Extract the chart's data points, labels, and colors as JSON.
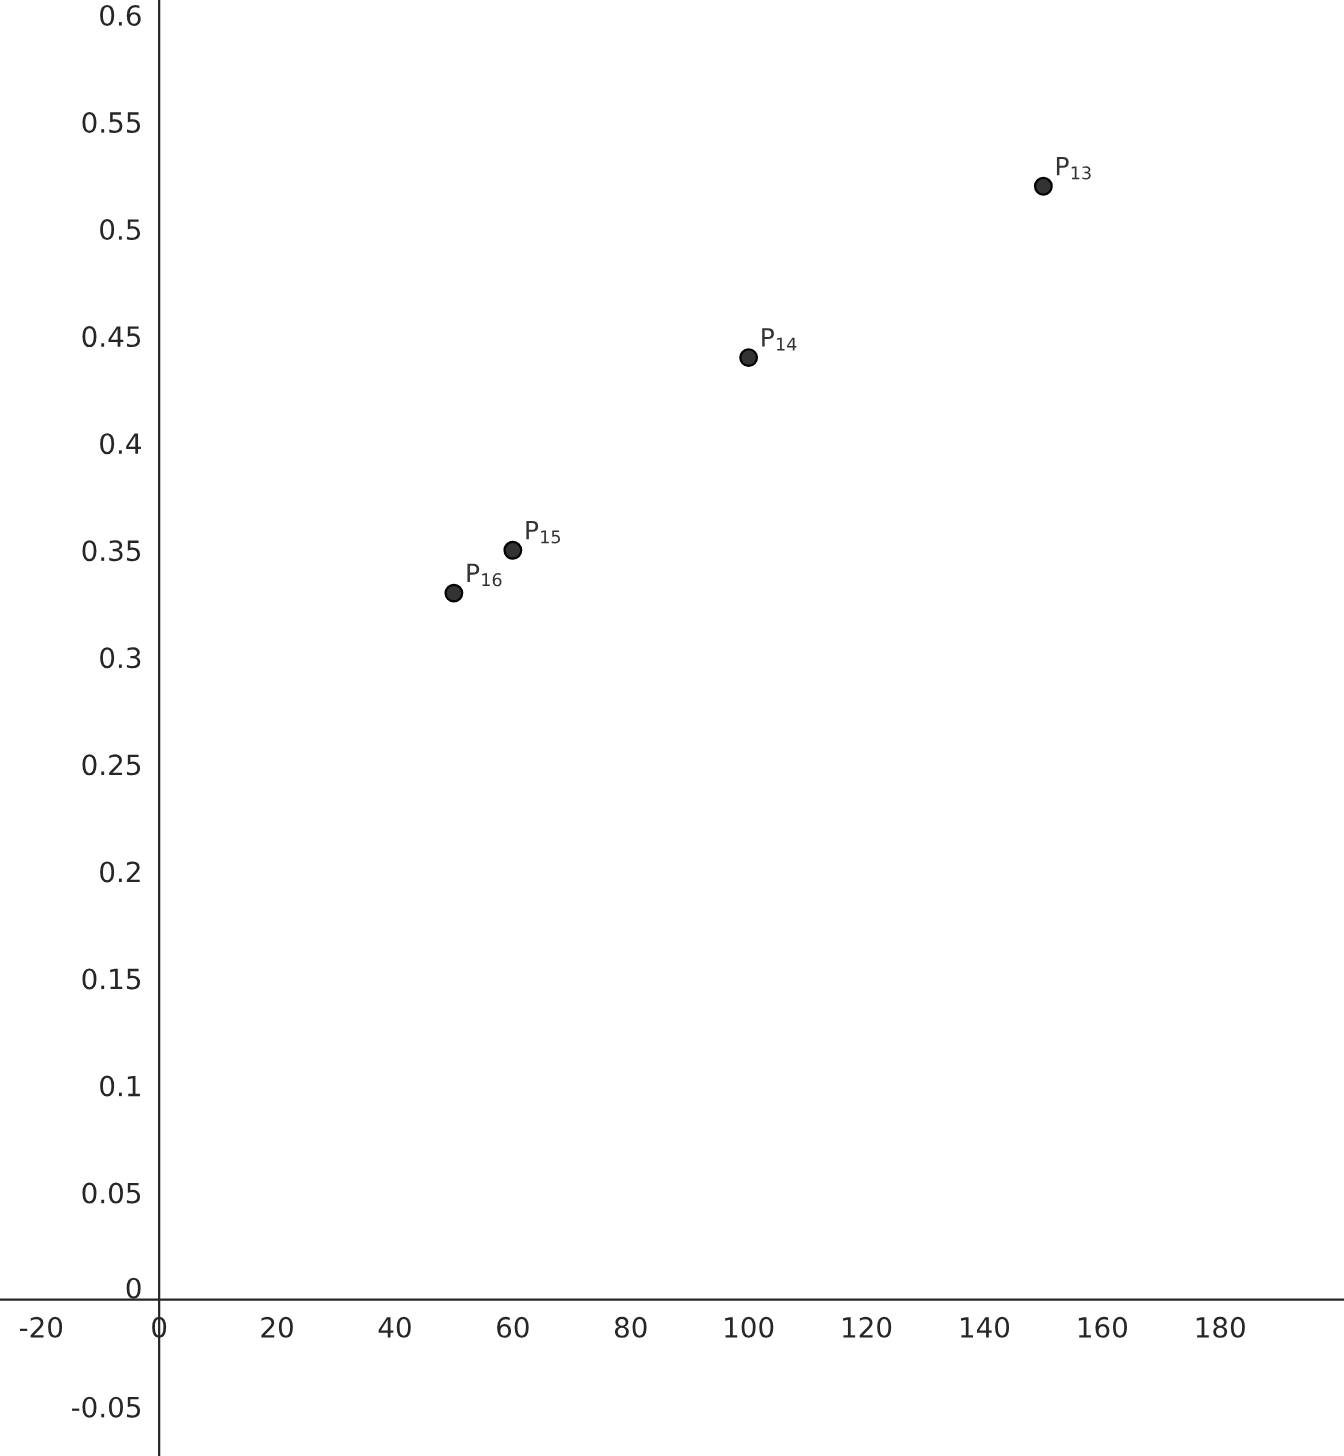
{
  "chart_data": {
    "type": "scatter",
    "x": [
      150,
      100,
      60,
      50
    ],
    "series": [
      {
        "color": "#333333",
        "values": [
          0.52,
          0.44,
          0.35,
          0.33
        ]
      }
    ],
    "marker": "circle",
    "xlim": [
      -27,
      201
    ],
    "ylim": [
      -0.073,
      0.607
    ],
    "xticks": [
      -20,
      0,
      20,
      40,
      60,
      80,
      100,
      120,
      140,
      160,
      180
    ],
    "yticks": [
      -0.05,
      0,
      0.05,
      0.1,
      0.15,
      0.2,
      0.25,
      0.3,
      0.35,
      0.4,
      0.45,
      0.5,
      0.55,
      0.6
    ],
    "grid": false,
    "legend": false,
    "annotations": [
      {
        "text": "P$_{13}$",
        "x": 150,
        "y": 0.52
      },
      {
        "text": "P$_{14}$",
        "x": 100,
        "y": 0.44
      },
      {
        "text": "P$_{15}$",
        "x": 60,
        "y": 0.35
      },
      {
        "text": "P$_{16}$",
        "x": 50,
        "y": 0.33
      }
    ]
  }
}
